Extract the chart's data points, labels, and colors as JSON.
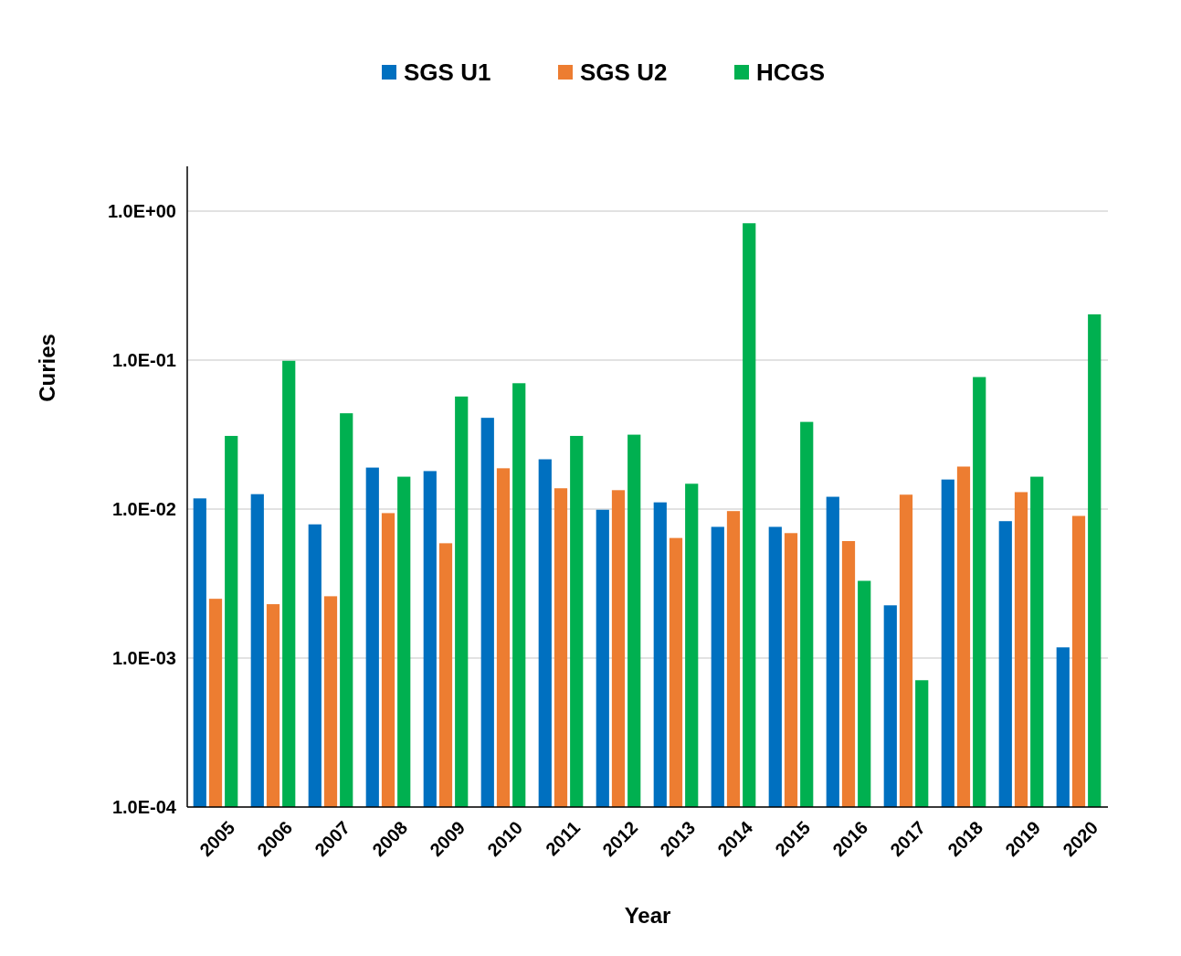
{
  "chart_data": {
    "type": "bar",
    "xlabel": "Year",
    "ylabel": "Curies",
    "categories": [
      "2005",
      "2006",
      "2007",
      "2008",
      "2009",
      "2010",
      "2011",
      "2012",
      "2013",
      "2014",
      "2015",
      "2016",
      "2017",
      "2018",
      "2019",
      "2020"
    ],
    "series": [
      {
        "name": "SGS U1",
        "color": "#0070c0",
        "values": [
          0.0118,
          0.0126,
          0.0079,
          0.019,
          0.018,
          0.041,
          0.0216,
          0.0099,
          0.0111,
          0.0076,
          0.0076,
          0.0121,
          0.00226,
          0.0158,
          0.0083,
          0.00118
        ]
      },
      {
        "name": "SGS U2",
        "color": "#ed7d31",
        "values": [
          0.0025,
          0.0023,
          0.0026,
          0.0094,
          0.0059,
          0.0188,
          0.0138,
          0.0134,
          0.0064,
          0.0097,
          0.0069,
          0.0061,
          0.0125,
          0.0193,
          0.013,
          0.009
        ]
      },
      {
        "name": "HCGS",
        "color": "#00b050",
        "values": [
          0.031,
          0.099,
          0.044,
          0.0165,
          0.057,
          0.07,
          0.031,
          0.0316,
          0.0148,
          0.83,
          0.0385,
          0.0033,
          0.00071,
          0.077,
          0.0165,
          0.203
        ]
      }
    ],
    "log": true,
    "ylim": [
      0.0001,
      2
    ],
    "yticks": [
      {
        "value": 0.0001,
        "label": "1.0E-04"
      },
      {
        "value": 0.001,
        "label": "1.0E-03"
      },
      {
        "value": 0.01,
        "label": "1.0E-02"
      },
      {
        "value": 0.1,
        "label": "1.0E-01"
      },
      {
        "value": 1,
        "label": "1.0E+00"
      }
    ],
    "grid": "y",
    "legend": "top"
  }
}
